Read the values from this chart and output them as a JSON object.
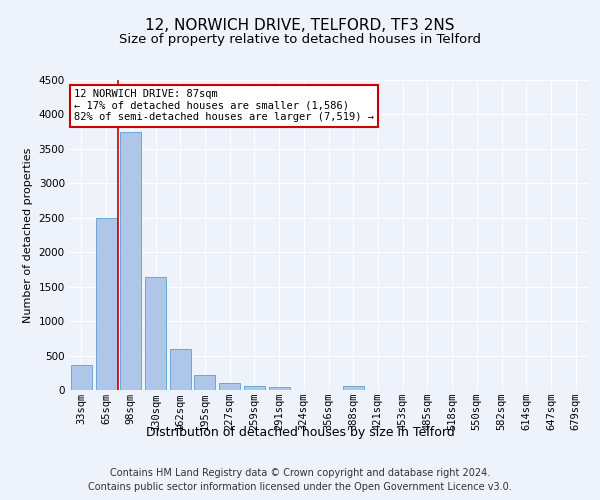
{
  "title1": "12, NORWICH DRIVE, TELFORD, TF3 2NS",
  "title2": "Size of property relative to detached houses in Telford",
  "xlabel": "Distribution of detached houses by size in Telford",
  "ylabel": "Number of detached properties",
  "footer1": "Contains HM Land Registry data © Crown copyright and database right 2024.",
  "footer2": "Contains public sector information licensed under the Open Government Licence v3.0.",
  "bar_labels": [
    "33sqm",
    "65sqm",
    "98sqm",
    "130sqm",
    "162sqm",
    "195sqm",
    "227sqm",
    "259sqm",
    "291sqm",
    "324sqm",
    "356sqm",
    "388sqm",
    "421sqm",
    "453sqm",
    "485sqm",
    "518sqm",
    "550sqm",
    "582sqm",
    "614sqm",
    "647sqm",
    "679sqm"
  ],
  "bar_values": [
    370,
    2500,
    3750,
    1640,
    590,
    225,
    105,
    60,
    40,
    0,
    0,
    60,
    0,
    0,
    0,
    0,
    0,
    0,
    0,
    0,
    0
  ],
  "bar_color": "#aec6e8",
  "bar_edge_color": "#5a9fd4",
  "vline_pos": 1.5,
  "annotation_line1": "12 NORWICH DRIVE: 87sqm",
  "annotation_line2": "← 17% of detached houses are smaller (1,586)",
  "annotation_line3": "82% of semi-detached houses are larger (7,519) →",
  "annotation_box_color": "#ffffff",
  "annotation_box_edge_color": "#cc0000",
  "ylim": [
    0,
    4500
  ],
  "yticks": [
    0,
    500,
    1000,
    1500,
    2000,
    2500,
    3000,
    3500,
    4000,
    4500
  ],
  "vline_color": "#cc0000",
  "bg_color": "#edf2fb",
  "plot_bg_color": "#edf2fb",
  "grid_color": "#ffffff",
  "title1_fontsize": 11,
  "title2_fontsize": 9.5,
  "xlabel_fontsize": 9,
  "ylabel_fontsize": 8,
  "tick_fontsize": 7.5,
  "footer_fontsize": 7
}
